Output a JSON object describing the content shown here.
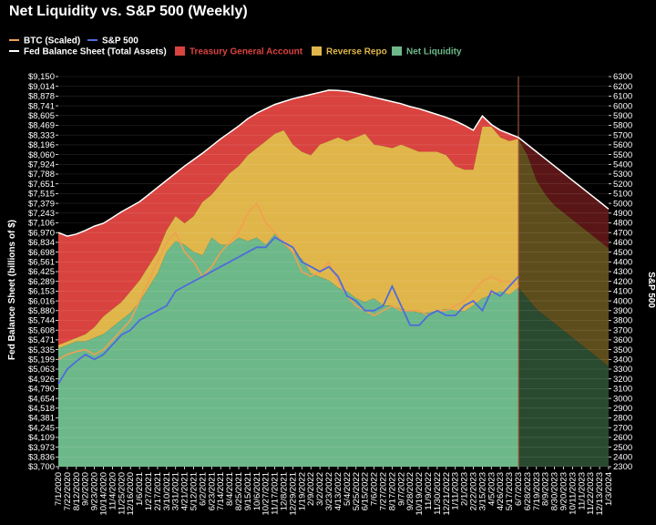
{
  "chart_data": {
    "type": "area",
    "title": "Net Liquidity vs. S&P 500 (Weekly)",
    "ylabel_left": "Fed Balance Sheet (billions of $)",
    "ylabel_right": "S&P 500",
    "ylim_left": [
      3700,
      9150
    ],
    "ylim_right": [
      2300,
      6300
    ],
    "legend": [
      {
        "name": "BTC (Scaled)",
        "color": "#f0a050",
        "kind": "line"
      },
      {
        "name": "S&P 500",
        "color": "#4f6bdc",
        "kind": "line"
      },
      {
        "name": "Fed Balance Sheet (Total Assets)",
        "color": "#ffffff",
        "kind": "line"
      },
      {
        "name": "Treasury General Account",
        "color": "#d9433f",
        "kind": "patch"
      },
      {
        "name": "Reverse Repo",
        "color": "#e0b64a",
        "kind": "patch"
      },
      {
        "name": "Net Liquidity",
        "color": "#6db889",
        "kind": "patch"
      }
    ],
    "left_ticks": [
      "$3,700",
      "$3,836",
      "$3,973",
      "$4,109",
      "$4,245",
      "$4,381",
      "$4,518",
      "$4,654",
      "$4,790",
      "$4,926",
      "$5,063",
      "$5,199",
      "$5,335",
      "$5,471",
      "$5,608",
      "$5,744",
      "$5,880",
      "$6,016",
      "$6,153",
      "$6,289",
      "$6,425",
      "$6,561",
      "$6,698",
      "$6,834",
      "$6,970",
      "$7,106",
      "$7,243",
      "$7,379",
      "$7,515",
      "$7,651",
      "$7,788",
      "$7,924",
      "$8,060",
      "$8,196",
      "$8,333",
      "$8,469",
      "$8,605",
      "$8,741",
      "$8,878",
      "$9,014",
      "$9,150"
    ],
    "right_ticks": [
      "2300",
      "2400",
      "2500",
      "2600",
      "2700",
      "2800",
      "2900",
      "3000",
      "3100",
      "3200",
      "3300",
      "3400",
      "3500",
      "3600",
      "3700",
      "3800",
      "3900",
      "4000",
      "4100",
      "4200",
      "4300",
      "4400",
      "4500",
      "4600",
      "4700",
      "4800",
      "4900",
      "5000",
      "5100",
      "5200",
      "5300",
      "5400",
      "5500",
      "5600",
      "5700",
      "5800",
      "5900",
      "6000",
      "6100",
      "6200",
      "6300"
    ],
    "x_dates": [
      "7/1/2020",
      "7/22/2020",
      "8/12/2020",
      "9/2/2020",
      "9/23/2020",
      "10/14/2020",
      "11/4/2020",
      "11/25/2020",
      "12/16/2020",
      "1/6/2021",
      "1/27/2021",
      "2/17/2021",
      "3/10/2021",
      "3/31/2021",
      "4/21/2021",
      "5/12/2021",
      "6/2/2021",
      "6/23/2021",
      "7/14/2021",
      "8/4/2021",
      "8/25/2021",
      "9/15/2021",
      "10/6/2021",
      "10/27/2021",
      "11/17/2021",
      "12/8/2021",
      "12/29/2021",
      "1/19/2022",
      "2/9/2022",
      "3/2/2022",
      "3/23/2022",
      "4/13/2022",
      "5/4/2022",
      "5/25/2022",
      "6/15/2022",
      "7/6/2022",
      "7/27/2022",
      "8/17/2022",
      "9/7/2022",
      "9/28/2022",
      "10/19/2022",
      "11/9/2022",
      "11/30/2022",
      "12/21/2022",
      "1/11/2023",
      "2/1/2023",
      "2/22/2023",
      "3/15/2023",
      "4/5/2023",
      "4/26/2023",
      "5/17/2023",
      "6/7/2023",
      "6/28/2023",
      "7/19/2023",
      "8/9/2023",
      "8/30/2023",
      "9/20/2023",
      "10/11/2023",
      "11/1/2023",
      "11/22/2023",
      "12/13/2023",
      "1/3/2024"
    ],
    "actual_points": 52,
    "fed_balance_sheet": [
      6970,
      6920,
      6950,
      7000,
      7060,
      7100,
      7180,
      7260,
      7330,
      7400,
      7500,
      7600,
      7700,
      7800,
      7900,
      7990,
      8080,
      8180,
      8280,
      8370,
      8460,
      8560,
      8640,
      8700,
      8760,
      8800,
      8840,
      8870,
      8900,
      8930,
      8960,
      8955,
      8945,
      8920,
      8890,
      8860,
      8830,
      8800,
      8770,
      8730,
      8700,
      8660,
      8620,
      8580,
      8530,
      8470,
      8400,
      8600,
      8480,
      8400,
      8350,
      8300,
      8200,
      8100,
      8000,
      7900,
      7800,
      7700,
      7600,
      7500,
      7400,
      7300
    ],
    "fed_minus_tga": [
      5400,
      5450,
      5500,
      5550,
      5650,
      5800,
      5900,
      6000,
      6150,
      6300,
      6500,
      6700,
      7000,
      7200,
      7100,
      7200,
      7400,
      7500,
      7650,
      7800,
      7900,
      8050,
      8150,
      8250,
      8350,
      8400,
      8200,
      8100,
      8050,
      8200,
      8250,
      8300,
      8250,
      8300,
      8350,
      8200,
      8180,
      8150,
      8200,
      8150,
      8100,
      8100,
      8100,
      8050,
      7900,
      7850,
      7850,
      8450,
      8450,
      8300,
      8250,
      8280,
      8050,
      7700,
      7500,
      7350,
      7250,
      7150,
      7050,
      6950,
      6850,
      6750
    ],
    "net_liquidity": [
      5350,
      5400,
      5450,
      5450,
      5500,
      5550,
      5650,
      5750,
      5850,
      6000,
      6200,
      6400,
      6700,
      6850,
      6800,
      6700,
      6650,
      6900,
      6800,
      6800,
      6900,
      6850,
      6900,
      6800,
      6950,
      6800,
      6700,
      6600,
      6400,
      6350,
      6300,
      6200,
      6150,
      6050,
      6000,
      6050,
      5950,
      5950,
      5900,
      5880,
      5850,
      5850,
      5880,
      5900,
      5880,
      5870,
      5950,
      6050,
      6100,
      6150,
      6100,
      6200,
      6050,
      5900,
      5800,
      5700,
      5600,
      5500,
      5400,
      5300,
      5200,
      5100
    ],
    "sp500": [
      3150,
      3300,
      3380,
      3450,
      3400,
      3450,
      3550,
      3650,
      3700,
      3800,
      3850,
      3900,
      3950,
      4100,
      4150,
      4200,
      4250,
      4300,
      4350,
      4400,
      4450,
      4500,
      4550,
      4550,
      4650,
      4600,
      4550,
      4400,
      4350,
      4300,
      4350,
      4250,
      4050,
      4000,
      3900,
      3900,
      3950,
      4150,
      3950,
      3750,
      3750,
      3850,
      3900,
      3850,
      3850,
      3950,
      4000,
      3900,
      4100,
      4050,
      4150,
      4250
    ],
    "btc_scaled": [
      3400,
      3450,
      3480,
      3500,
      3450,
      3500,
      3600,
      3700,
      3800,
      4000,
      4200,
      4400,
      4600,
      4700,
      4500,
      4400,
      4250,
      4350,
      4500,
      4600,
      4700,
      4900,
      5000,
      4800,
      4700,
      4600,
      4500,
      4300,
      4250,
      4300,
      4400,
      4200,
      4050,
      3950,
      3900,
      3850,
      3900,
      3950,
      3900,
      3900,
      3900,
      3850,
      3900,
      3900,
      3950,
      4000,
      4100,
      4200,
      4250,
      4200,
      4200,
      4150
    ]
  }
}
